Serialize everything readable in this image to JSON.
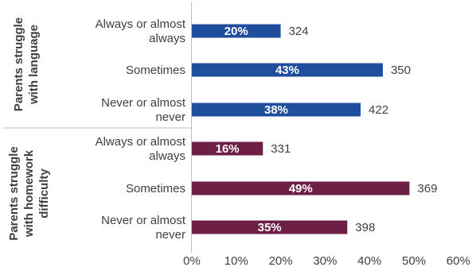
{
  "chart_data": {
    "type": "bar",
    "orientation": "horizontal",
    "xlim": [
      0,
      60
    ],
    "x_ticks": [
      "0%",
      "10%",
      "20%",
      "30%",
      "40%",
      "50%",
      "60%"
    ],
    "grid": false,
    "groups": [
      {
        "label_lines": [
          "Parents struggle",
          "with language"
        ],
        "color": "#1f4e9c",
        "rows": [
          {
            "category_lines": [
              "Always or almost",
              "always"
            ],
            "value": 20,
            "value_label": "20%",
            "count": "324"
          },
          {
            "category_lines": [
              "Sometimes"
            ],
            "value": 43,
            "value_label": "43%",
            "count": "350"
          },
          {
            "category_lines": [
              "Never or almost",
              "never"
            ],
            "value": 38,
            "value_label": "38%",
            "count": "422"
          }
        ]
      },
      {
        "label_lines": [
          "Parents struggle",
          "with homework",
          "difficulty"
        ],
        "color": "#6d1f45",
        "rows": [
          {
            "category_lines": [
              "Always or almost",
              "always"
            ],
            "value": 16,
            "value_label": "16%",
            "count": "331"
          },
          {
            "category_lines": [
              "Sometimes"
            ],
            "value": 49,
            "value_label": "49%",
            "count": "369"
          },
          {
            "category_lines": [
              "Never or almost",
              "never"
            ],
            "value": 35,
            "value_label": "35%",
            "count": "398"
          }
        ]
      }
    ]
  }
}
